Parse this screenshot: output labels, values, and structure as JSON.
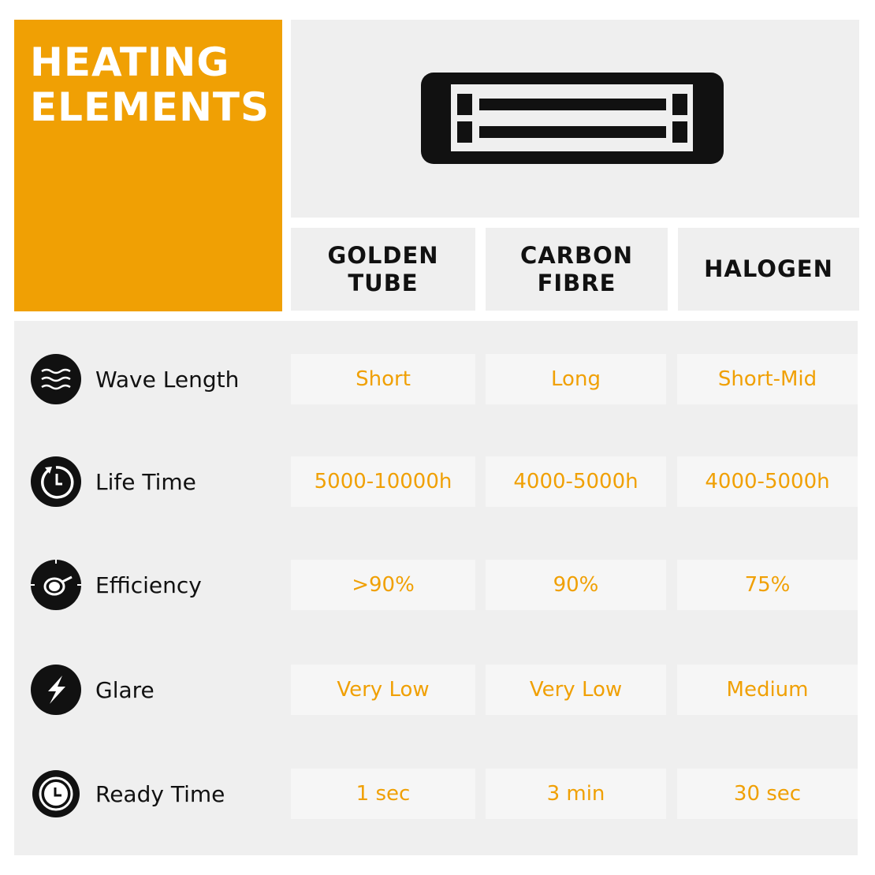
{
  "title": [
    "HEATING",
    "ELEMENTS"
  ],
  "colors": {
    "accent": "#f0a004",
    "panel": "#efefef",
    "icon": "#111111"
  },
  "hero_icon": "infrared-heater-icon",
  "columns": [
    "GOLDEN\nTUBE",
    "CARBON\nFIBRE",
    "HALOGEN"
  ],
  "rows": [
    {
      "label": "Wave Length",
      "icon": "waves-icon",
      "values": [
        "Short",
        "Long",
        "Short-Mid"
      ]
    },
    {
      "label": "Life Time",
      "icon": "timer-refresh-icon",
      "values": [
        "5000-10000h",
        "4000-5000h",
        "4000-5000h"
      ]
    },
    {
      "label": "Efficiency",
      "icon": "efficiency-gauge-icon",
      "values": [
        ">90%",
        "90%",
        "75%"
      ]
    },
    {
      "label": "Glare",
      "icon": "lightning-icon",
      "values": [
        "Very Low",
        "Very Low",
        "Medium"
      ]
    },
    {
      "label": "Ready Time",
      "icon": "clock-icon",
      "values": [
        "1 sec",
        "3 min",
        "30 sec"
      ]
    }
  ]
}
